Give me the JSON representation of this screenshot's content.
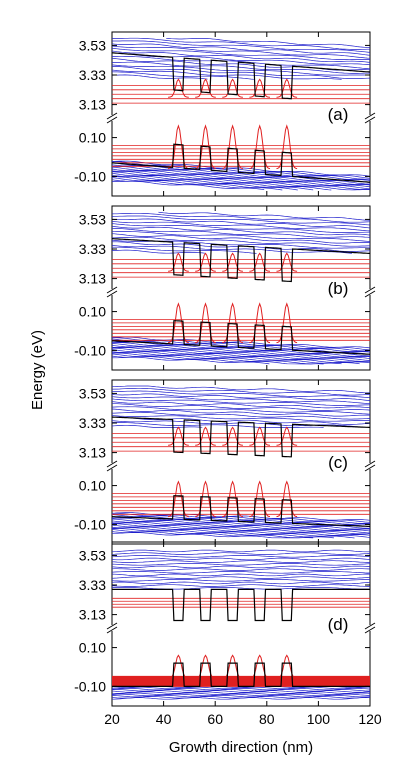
{
  "chart_data": {
    "type": "line",
    "ylabel": "Energy (eV)",
    "xlabel": "Growth direction  (nm)",
    "xlim": [
      20,
      120
    ],
    "x_ticks": [
      "20",
      "40",
      "60",
      "80",
      "100",
      "120"
    ],
    "y_ticks": [
      "3.53",
      "3.33",
      "3.13",
      "0.10",
      "-0.10"
    ],
    "y_axis_break": "broken between 3.13 and 0.10",
    "panels": [
      {
        "label": "(a)",
        "field": "strong",
        "cb_left": 3.48,
        "cb_right": 3.35,
        "vb_left": -0.03,
        "vb_right": -0.13
      },
      {
        "label": "(b)",
        "field": "medium",
        "cb_left": 3.4,
        "cb_right": 3.3,
        "vb_left": -0.05,
        "vb_right": -0.12
      },
      {
        "label": "(c)",
        "field": "weak",
        "cb_left": 3.37,
        "cb_right": 3.3,
        "vb_left": -0.06,
        "vb_right": -0.11
      },
      {
        "label": "(d)",
        "field": "zero",
        "cb_left": 3.3,
        "cb_right": 3.3,
        "vb_left": -0.1,
        "vb_right": -0.1
      }
    ],
    "wells_nm": [
      [
        44,
        47.5
      ],
      [
        54.5,
        58
      ],
      [
        65,
        68.5
      ],
      [
        75.5,
        79
      ],
      [
        86,
        89.5
      ]
    ],
    "series": [
      {
        "name": "",
        "color": "#000000"
      },
      {
        "name": "",
        "color": "#2020cc"
      },
      {
        "name": "",
        "color": "#e02020"
      }
    ]
  }
}
